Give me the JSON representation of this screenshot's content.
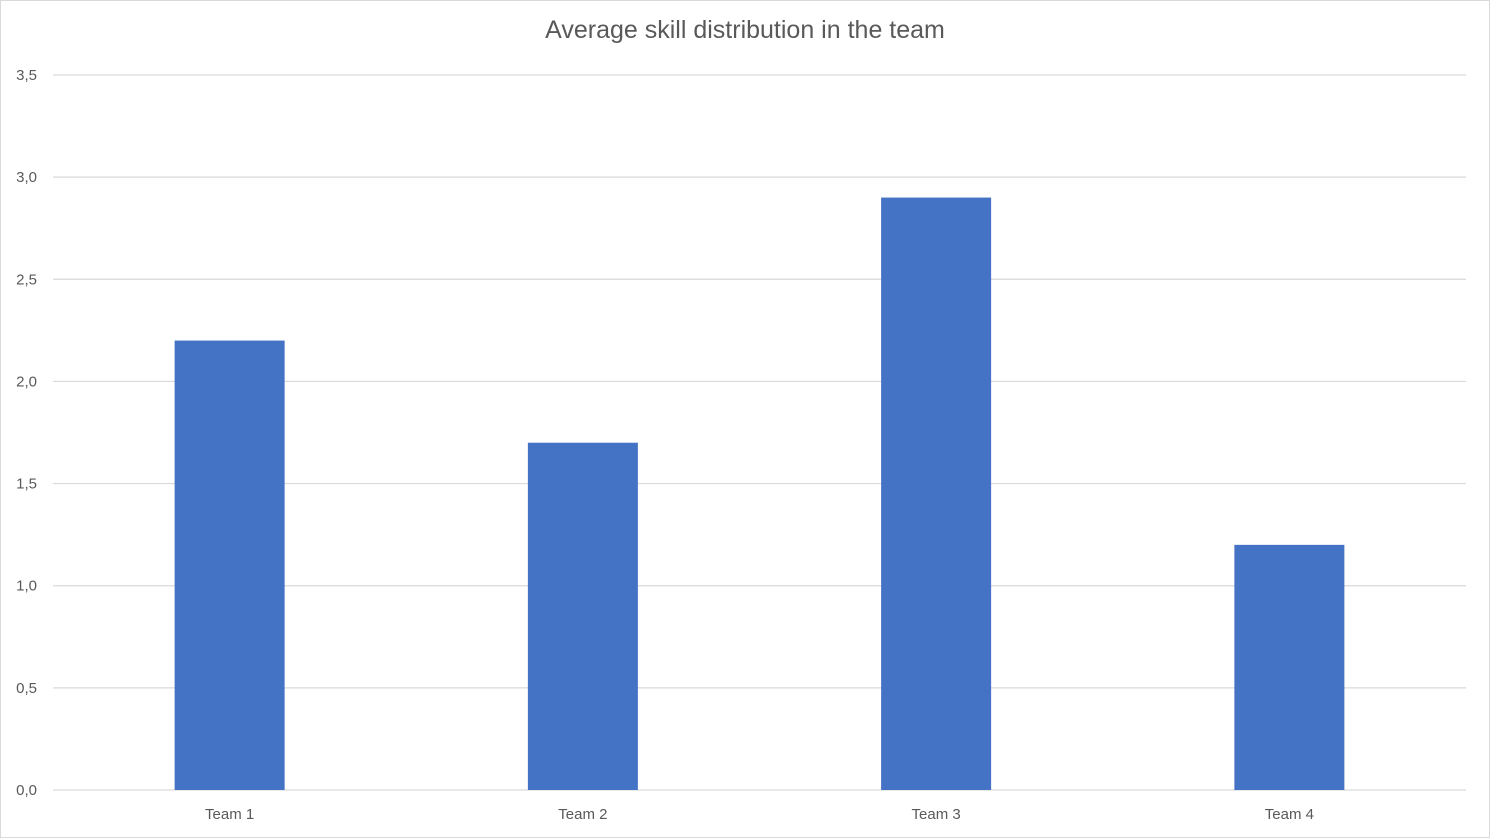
{
  "chart_data": {
    "type": "bar",
    "title": "Average skill distribution in the team",
    "xlabel": "",
    "ylabel": "",
    "categories": [
      "Team 1",
      "Team 2",
      "Team 3",
      "Team 4"
    ],
    "values": [
      2.2,
      1.7,
      2.9,
      1.2
    ],
    "ylim": [
      0,
      3.5
    ],
    "yticks": [
      0.0,
      0.5,
      1.0,
      1.5,
      2.0,
      2.5,
      3.0,
      3.5
    ],
    "ytick_labels": [
      "0,0",
      "0,5",
      "1,0",
      "1,5",
      "2,0",
      "2,5",
      "3,0",
      "3,5"
    ],
    "grid": true,
    "legend": "none",
    "bar_color": "#4472C4",
    "grid_color": "#d9d9d9"
  }
}
